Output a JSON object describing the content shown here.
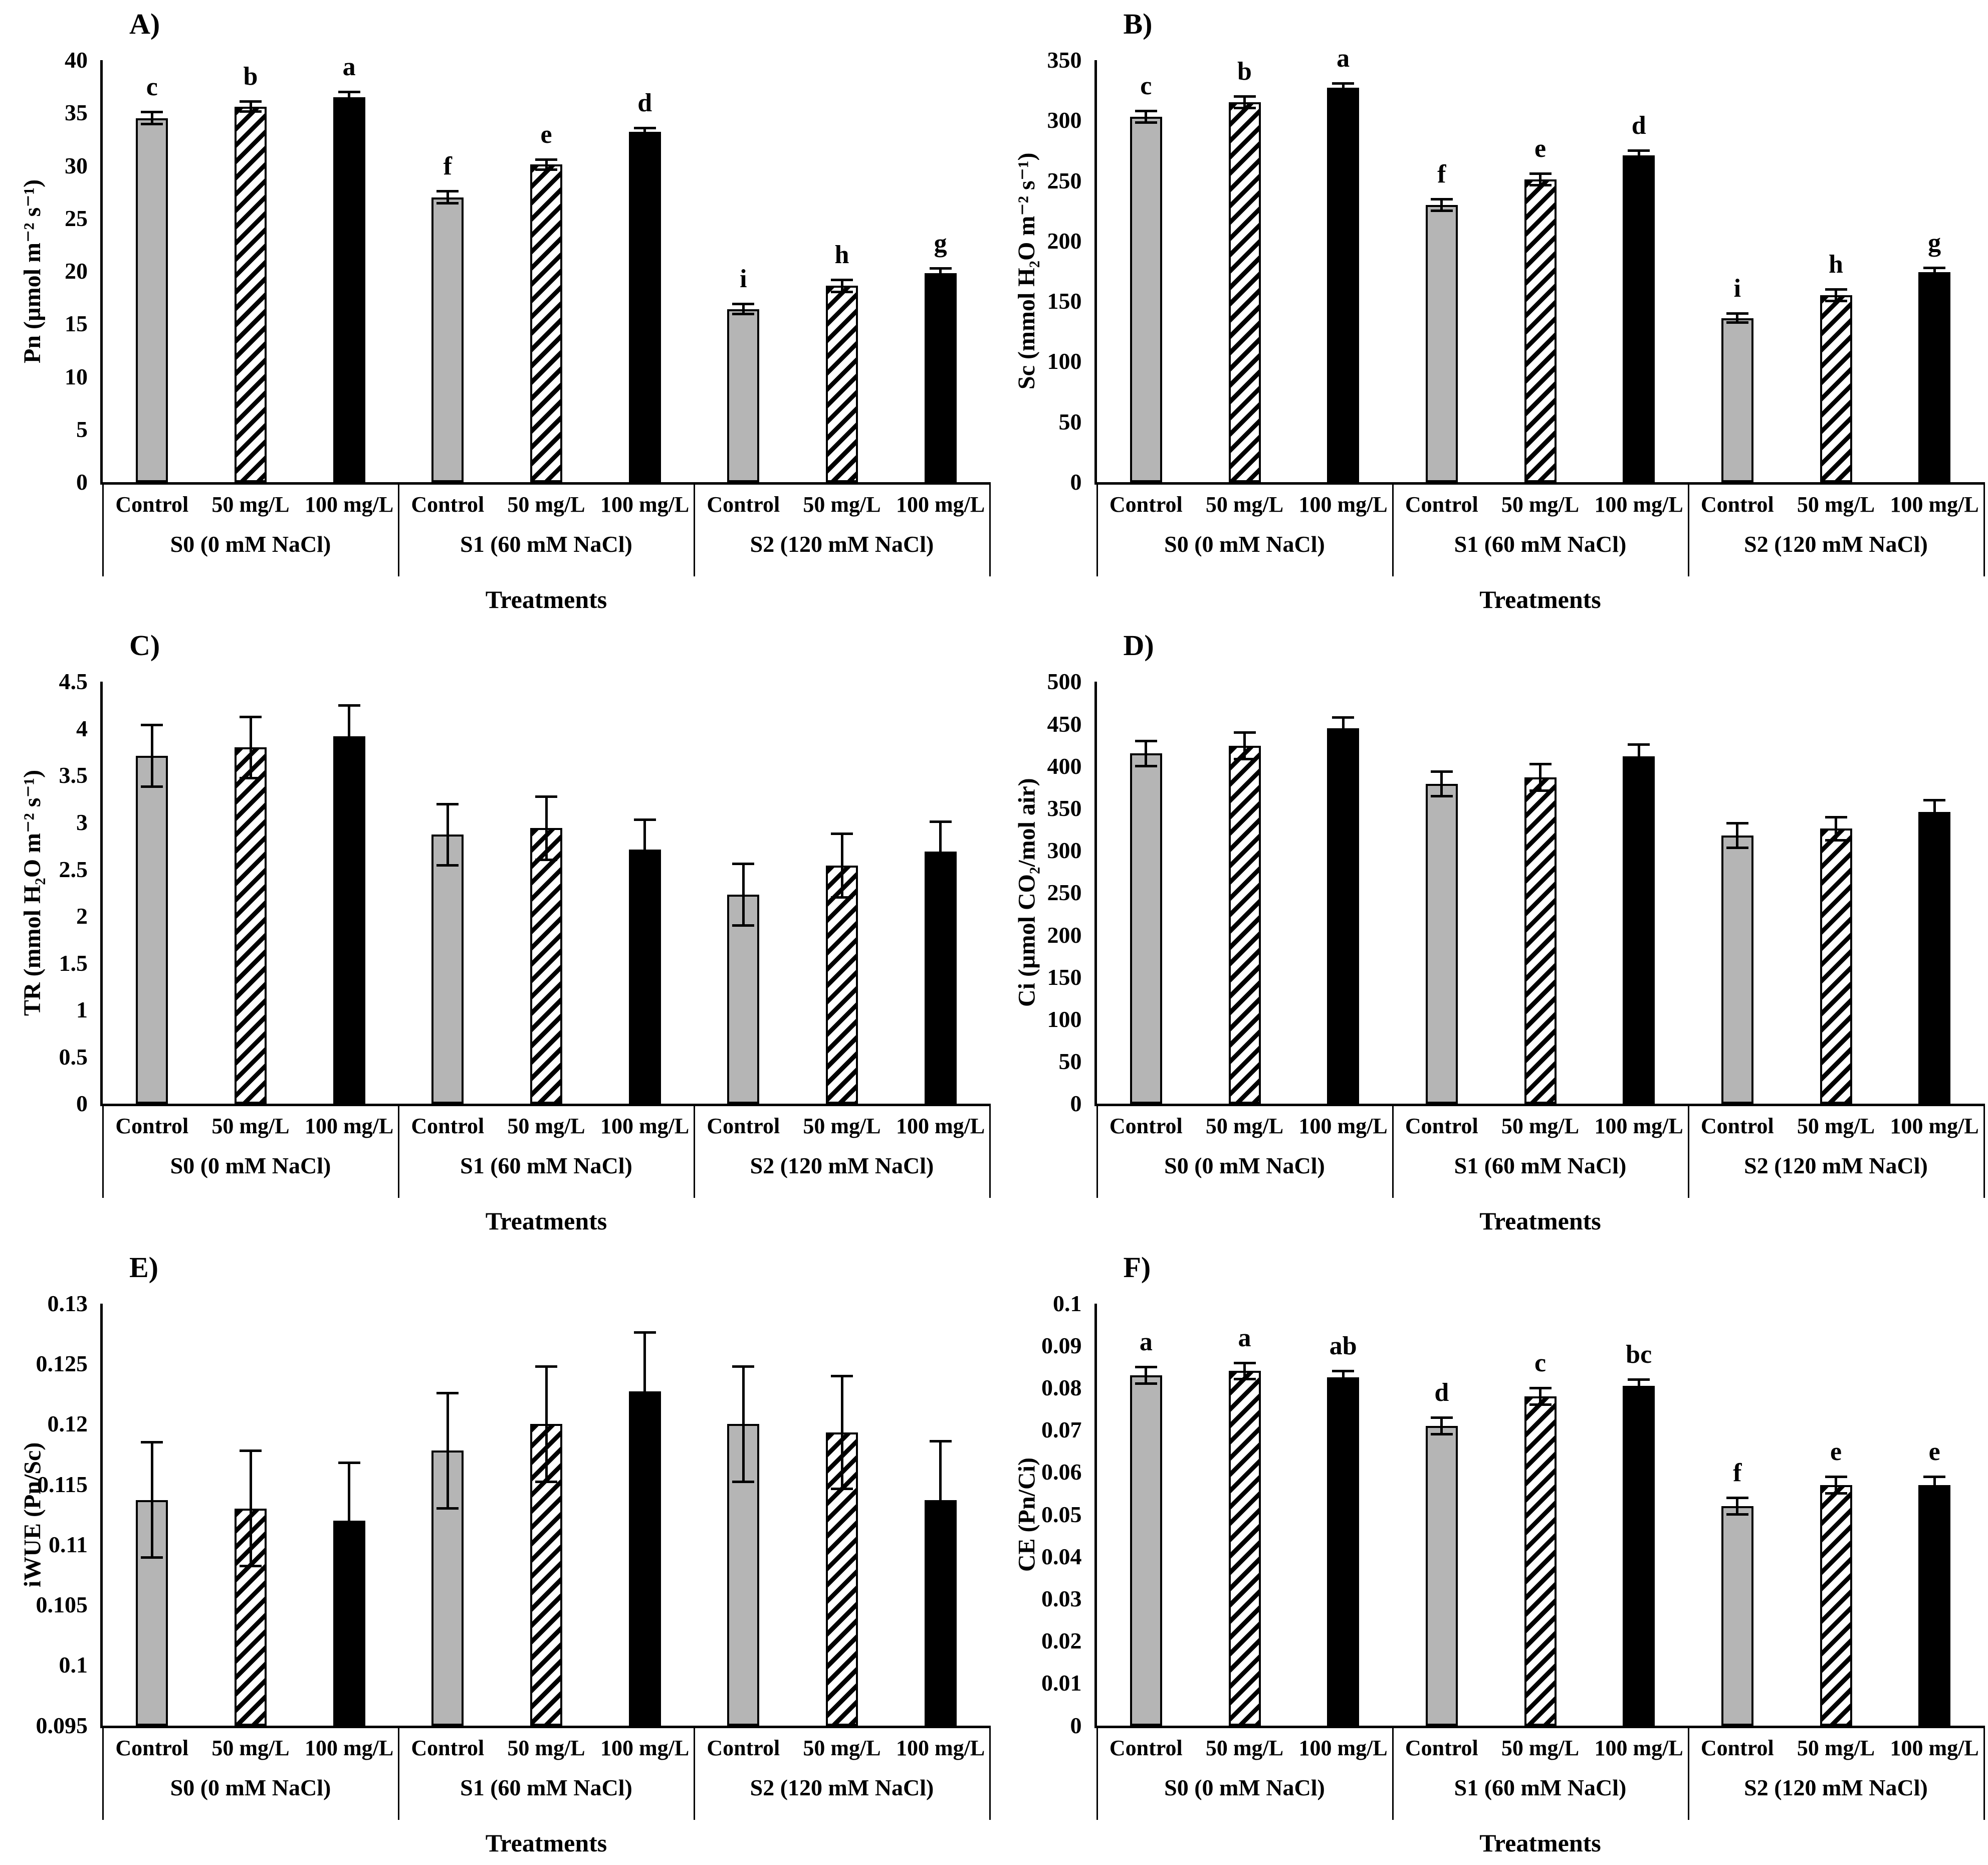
{
  "figure": {
    "x_axis_title": "Treatments",
    "treatments": [
      "Control",
      "50 mg/L",
      "100 mg/L"
    ],
    "salinity_groups": [
      "S0 (0 mM NaCl)",
      "S1 (60 mM NaCl)",
      "S2 (120 mM NaCl)"
    ],
    "bar_style_colors": {
      "control_fill": "#b5b5b5",
      "hatch_pattern": "black-diagonal-stripes-on-white",
      "high_dose_fill": "#000000",
      "border": "#000000"
    }
  },
  "chart_data": [
    {
      "type": "bar",
      "panel_label": "A)",
      "ylabel": "Pn (µmol m⁻² s⁻¹)",
      "xlabel": "Treatments",
      "ylim": [
        0,
        40
      ],
      "yticks": [
        "0",
        "5",
        "10",
        "15",
        "20",
        "25",
        "30",
        "35",
        "40"
      ],
      "categories": [
        "Control",
        "50 mg/L",
        "100 mg/L"
      ],
      "groups": [
        {
          "label": "S0 (0 mM NaCl)",
          "values": [
            34.5,
            35.6,
            36.5
          ],
          "errors": [
            0.6,
            0.5,
            0.5
          ],
          "letters": [
            "c",
            "b",
            "a"
          ]
        },
        {
          "label": "S1 (60 mM NaCl)",
          "values": [
            27.0,
            30.1,
            33.2
          ],
          "errors": [
            0.6,
            0.5,
            0.4
          ],
          "letters": [
            "f",
            "e",
            "d"
          ]
        },
        {
          "label": "S2 (120 mM NaCl)",
          "values": [
            16.4,
            18.6,
            19.8
          ],
          "errors": [
            0.5,
            0.6,
            0.5
          ],
          "letters": [
            "i",
            "h",
            "g"
          ]
        }
      ]
    },
    {
      "type": "bar",
      "panel_label": "B)",
      "ylabel": "Sc (mmol H₂O m⁻² s⁻¹)",
      "xlabel": "Treatments",
      "ylim": [
        0,
        350
      ],
      "yticks": [
        "0",
        "50",
        "100",
        "150",
        "200",
        "250",
        "300",
        "350"
      ],
      "categories": [
        "Control",
        "50 mg/L",
        "100 mg/L"
      ],
      "groups": [
        {
          "label": "S0 (0 mM NaCl)",
          "values": [
            303,
            315,
            327
          ],
          "errors": [
            5,
            5,
            4
          ],
          "letters": [
            "c",
            "b",
            "a"
          ]
        },
        {
          "label": "S1 (60 mM NaCl)",
          "values": [
            230,
            251,
            271
          ],
          "errors": [
            5,
            5,
            4
          ],
          "letters": [
            "f",
            "e",
            "d"
          ]
        },
        {
          "label": "S2 (120 mM NaCl)",
          "values": [
            136,
            155,
            174
          ],
          "errors": [
            4,
            5,
            4
          ],
          "letters": [
            "i",
            "h",
            "g"
          ]
        }
      ]
    },
    {
      "type": "bar",
      "panel_label": "C)",
      "ylabel": "TR (mmol H₂O m⁻² s⁻¹)",
      "xlabel": "Treatments",
      "ylim": [
        0,
        4.5
      ],
      "yticks": [
        "0",
        "0.5",
        "1",
        "1.5",
        "2",
        "2.5",
        "3",
        "3.5",
        "4",
        "4.5"
      ],
      "categories": [
        "Control",
        "50 mg/L",
        "100 mg/L"
      ],
      "groups": [
        {
          "label": "S0 (0 mM NaCl)",
          "values": [
            3.71,
            3.8,
            3.92
          ],
          "errors": [
            0.33,
            0.33,
            0.33
          ],
          "letters": [
            "",
            "",
            ""
          ]
        },
        {
          "label": "S1 (60 mM NaCl)",
          "values": [
            2.87,
            2.94,
            2.71
          ],
          "errors": [
            0.33,
            0.34,
            0.32
          ],
          "letters": [
            "",
            "",
            ""
          ]
        },
        {
          "label": "S2 (120 mM NaCl)",
          "values": [
            2.23,
            2.54,
            2.69
          ],
          "errors": [
            0.33,
            0.34,
            0.32
          ],
          "letters": [
            "",
            "",
            ""
          ]
        }
      ]
    },
    {
      "type": "bar",
      "panel_label": "D)",
      "ylabel": "Ci (µmol CO₂/mol air)",
      "xlabel": "Treatments",
      "ylim": [
        0,
        500
      ],
      "yticks": [
        "0",
        "50",
        "100",
        "150",
        "200",
        "250",
        "300",
        "350",
        "400",
        "450",
        "500"
      ],
      "categories": [
        "Control",
        "50 mg/L",
        "100 mg/L"
      ],
      "groups": [
        {
          "label": "S0 (0 mM NaCl)",
          "values": [
            415,
            424,
            445
          ],
          "errors": [
            15,
            16,
            13
          ],
          "letters": [
            "",
            "",
            ""
          ]
        },
        {
          "label": "S1 (60 mM NaCl)",
          "values": [
            379,
            387,
            412
          ],
          "errors": [
            15,
            16,
            14
          ],
          "letters": [
            "",
            "",
            ""
          ]
        },
        {
          "label": "S2 (120 mM NaCl)",
          "values": [
            318,
            326,
            346
          ],
          "errors": [
            15,
            14,
            14
          ],
          "letters": [
            "",
            "",
            ""
          ]
        }
      ]
    },
    {
      "type": "bar",
      "panel_label": "E)",
      "ylabel": "iWUE (Pn/Sc)",
      "xlabel": "Treatments",
      "ylim": [
        0.095,
        0.13
      ],
      "yticks": [
        "0.095",
        "0.1",
        "0.105",
        "0.11",
        "0.115",
        "0.12",
        "0.125",
        "0.13"
      ],
      "categories": [
        "Control",
        "50 mg/L",
        "100 mg/L"
      ],
      "groups": [
        {
          "label": "S0 (0 mM NaCl)",
          "values": [
            0.1137,
            0.113,
            0.112
          ],
          "errors": [
            0.0048,
            0.0048,
            0.0048
          ],
          "letters": [
            "",
            "",
            ""
          ]
        },
        {
          "label": "S1 (60 mM NaCl)",
          "values": [
            0.1178,
            0.12,
            0.1227
          ],
          "errors": [
            0.0048,
            0.0048,
            0.0049
          ],
          "letters": [
            "",
            "",
            ""
          ]
        },
        {
          "label": "S2 (120 mM NaCl)",
          "values": [
            0.12,
            0.1193,
            0.1137
          ],
          "errors": [
            0.0048,
            0.0047,
            0.0049
          ],
          "letters": [
            "",
            "",
            ""
          ]
        }
      ]
    },
    {
      "type": "bar",
      "panel_label": "F)",
      "ylabel": "CE (Pn/Ci)",
      "xlabel": "Treatments",
      "ylim": [
        0,
        0.1
      ],
      "yticks": [
        "0",
        "0.01",
        "0.02",
        "0.03",
        "0.04",
        "0.05",
        "0.06",
        "0.07",
        "0.08",
        "0.09",
        "0.1"
      ],
      "categories": [
        "Control",
        "50 mg/L",
        "100 mg/L"
      ],
      "groups": [
        {
          "label": "S0 (0 mM NaCl)",
          "values": [
            0.083,
            0.084,
            0.0825
          ],
          "errors": [
            0.002,
            0.002,
            0.0015
          ],
          "letters": [
            "a",
            "a",
            "ab"
          ]
        },
        {
          "label": "S1 (60 mM NaCl)",
          "values": [
            0.071,
            0.078,
            0.0805
          ],
          "errors": [
            0.002,
            0.002,
            0.0015
          ],
          "letters": [
            "d",
            "c",
            "bc"
          ]
        },
        {
          "label": "S2 (120 mM NaCl)",
          "values": [
            0.052,
            0.057,
            0.057
          ],
          "errors": [
            0.002,
            0.002,
            0.002
          ],
          "letters": [
            "f",
            "e",
            "e"
          ]
        }
      ]
    }
  ]
}
